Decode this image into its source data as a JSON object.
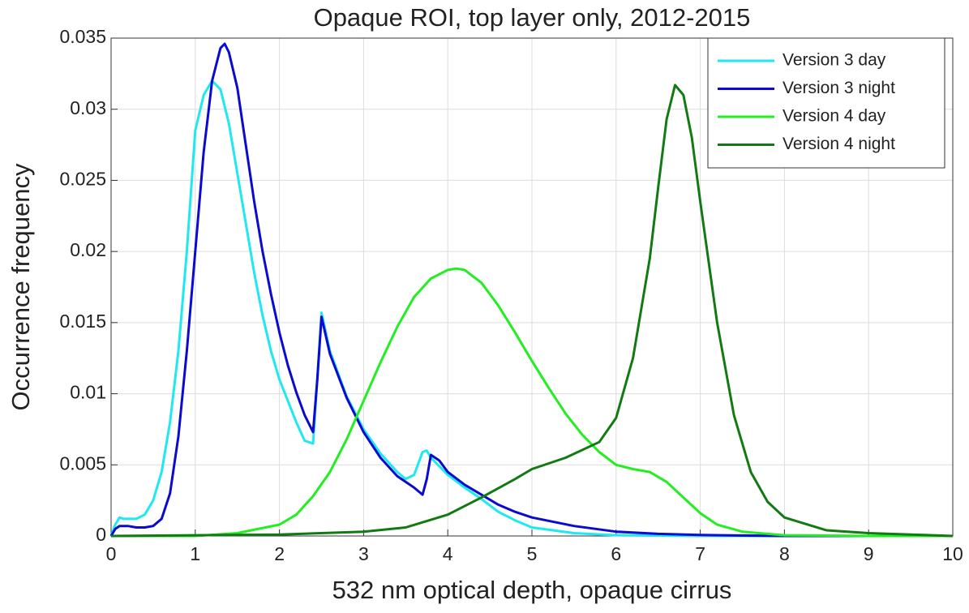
{
  "chart_data": {
    "type": "line",
    "title": "Opaque ROI, top layer only, 2012-2015",
    "xlabel": "532 nm optical depth, opaque cirrus",
    "ylabel": "Occurrence frequency",
    "xlim": [
      0,
      10
    ],
    "xticks": [
      0,
      1,
      2,
      3,
      4,
      5,
      6,
      7,
      8,
      9,
      10
    ],
    "ylim": [
      0,
      0.035
    ],
    "yticks": [
      0,
      0.005,
      0.01,
      0.015,
      0.02,
      0.025,
      0.03,
      0.035
    ],
    "grid": true,
    "legend": "top-right",
    "series": [
      {
        "name": "Version 3 day",
        "color": "#1ee8f0",
        "x": [
          0,
          0.05,
          0.1,
          0.15,
          0.2,
          0.3,
          0.4,
          0.5,
          0.6,
          0.7,
          0.8,
          0.9,
          1.0,
          1.1,
          1.2,
          1.3,
          1.4,
          1.5,
          1.6,
          1.7,
          1.8,
          1.9,
          2.0,
          2.1,
          2.2,
          2.3,
          2.4,
          2.45,
          2.5,
          2.6,
          2.8,
          3.0,
          3.2,
          3.4,
          3.5,
          3.6,
          3.7,
          3.75,
          3.8,
          4.0,
          4.2,
          4.4,
          4.6,
          4.8,
          5.0,
          5.5,
          6,
          7,
          10
        ],
        "values": [
          0,
          0.0008,
          0.0013,
          0.0012,
          0.0012,
          0.0012,
          0.0015,
          0.0025,
          0.0045,
          0.008,
          0.013,
          0.02,
          0.0285,
          0.031,
          0.032,
          0.0314,
          0.029,
          0.0255,
          0.022,
          0.0185,
          0.0155,
          0.013,
          0.011,
          0.0095,
          0.008,
          0.0067,
          0.0065,
          0.011,
          0.0157,
          0.013,
          0.0098,
          0.0075,
          0.0058,
          0.0045,
          0.004,
          0.0043,
          0.0059,
          0.006,
          0.0055,
          0.0043,
          0.0034,
          0.0026,
          0.0017,
          0.0011,
          0.0006,
          0.0002,
          5e-05,
          0,
          0
        ]
      },
      {
        "name": "Version 3 night",
        "color": "#0a0ad0",
        "x": [
          0,
          0.05,
          0.1,
          0.2,
          0.3,
          0.4,
          0.5,
          0.6,
          0.7,
          0.8,
          0.9,
          1.0,
          1.1,
          1.2,
          1.3,
          1.35,
          1.4,
          1.5,
          1.6,
          1.7,
          1.8,
          1.9,
          2.0,
          2.1,
          2.2,
          2.3,
          2.4,
          2.45,
          2.5,
          2.6,
          2.8,
          3.0,
          3.2,
          3.4,
          3.6,
          3.7,
          3.75,
          3.8,
          3.9,
          4.0,
          4.2,
          4.4,
          4.6,
          4.8,
          5.0,
          5.5,
          6,
          6.5,
          7,
          8,
          10
        ],
        "values": [
          0,
          0.0005,
          0.0007,
          0.0007,
          0.0006,
          0.0006,
          0.0007,
          0.0012,
          0.003,
          0.007,
          0.013,
          0.02,
          0.027,
          0.032,
          0.0343,
          0.0346,
          0.034,
          0.0315,
          0.0275,
          0.0235,
          0.02,
          0.017,
          0.0143,
          0.012,
          0.0101,
          0.0085,
          0.0073,
          0.011,
          0.0154,
          0.0128,
          0.0097,
          0.0073,
          0.0055,
          0.0042,
          0.0034,
          0.0029,
          0.004,
          0.0057,
          0.0053,
          0.0045,
          0.0036,
          0.0029,
          0.0022,
          0.0017,
          0.0013,
          0.0007,
          0.0003,
          0.00015,
          7e-05,
          0,
          0
        ]
      },
      {
        "name": "Version 4 day",
        "color": "#22ee22",
        "x": [
          0,
          1,
          1.5,
          2,
          2.2,
          2.4,
          2.6,
          2.8,
          3.0,
          3.2,
          3.4,
          3.6,
          3.8,
          4.0,
          4.1,
          4.2,
          4.4,
          4.6,
          4.8,
          5.0,
          5.2,
          5.4,
          5.6,
          5.8,
          6.0,
          6.2,
          6.4,
          6.6,
          6.8,
          7.0,
          7.2,
          7.5,
          8,
          9,
          10
        ],
        "values": [
          0,
          0,
          0.0002,
          0.0008,
          0.0015,
          0.0028,
          0.0045,
          0.0068,
          0.0095,
          0.0122,
          0.0147,
          0.0168,
          0.0181,
          0.0187,
          0.0188,
          0.0187,
          0.0178,
          0.0162,
          0.0143,
          0.0123,
          0.0104,
          0.0086,
          0.0071,
          0.0059,
          0.005,
          0.0047,
          0.0045,
          0.0038,
          0.0027,
          0.0016,
          0.0008,
          0.0003,
          5e-05,
          0,
          0
        ]
      },
      {
        "name": "Version 4 night",
        "color": "#127a12",
        "x": [
          0,
          2,
          3,
          3.5,
          4,
          4.4,
          4.8,
          5.0,
          5.4,
          5.8,
          6.0,
          6.2,
          6.4,
          6.5,
          6.6,
          6.7,
          6.8,
          6.9,
          7.0,
          7.2,
          7.4,
          7.6,
          7.8,
          8.0,
          8.5,
          9,
          9.5,
          10
        ],
        "values": [
          0,
          0.0001,
          0.0003,
          0.0006,
          0.0015,
          0.0027,
          0.004,
          0.0047,
          0.0055,
          0.0066,
          0.0083,
          0.0125,
          0.0195,
          0.0245,
          0.0293,
          0.0317,
          0.031,
          0.028,
          0.0235,
          0.015,
          0.0085,
          0.0045,
          0.0024,
          0.0013,
          0.0004,
          0.0002,
          0.0001,
          0
        ]
      }
    ]
  }
}
